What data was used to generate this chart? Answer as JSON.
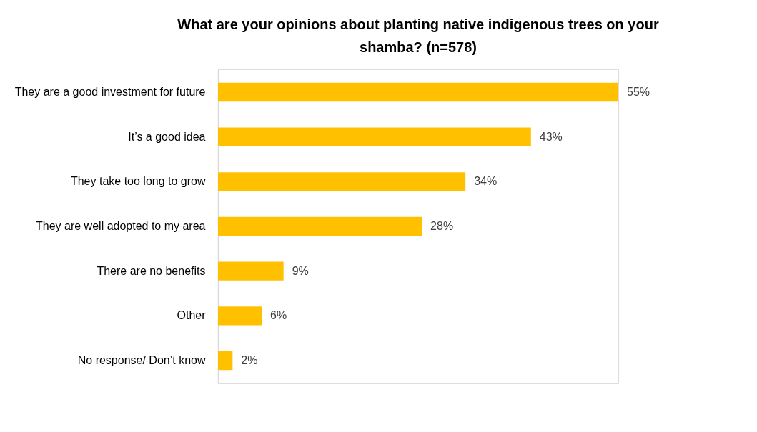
{
  "chart_data": {
    "type": "bar",
    "orientation": "horizontal",
    "title": "What are your opinions about planting native indigenous trees on your shamba? (n=578)",
    "categories": [
      "They are a good investment for future",
      "It’s a good idea",
      "They take too long to grow",
      "They are well adopted to my area",
      "There are no benefits",
      "Other",
      "No response/ Don’t know"
    ],
    "values": [
      55,
      43,
      34,
      28,
      9,
      6,
      2
    ],
    "value_labels": [
      "55%",
      "43%",
      "34%",
      "28%",
      "9%",
      "6%",
      "2%"
    ],
    "color": "#ffc000"
  }
}
